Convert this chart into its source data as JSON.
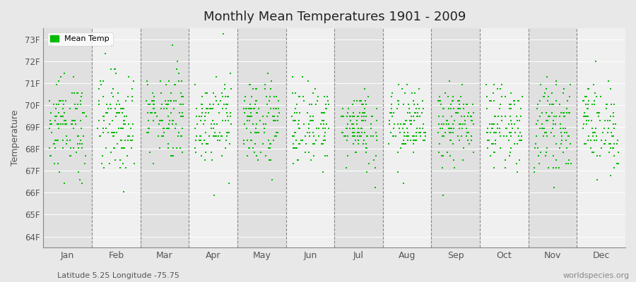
{
  "title": "Monthly Mean Temperatures 1901 - 2009",
  "ylabel": "Temperature",
  "subtitle": "Latitude 5.25 Longitude -75.75",
  "watermark": "worldspecies.org",
  "legend_label": "Mean Temp",
  "months": [
    "Jan",
    "Feb",
    "Mar",
    "Apr",
    "May",
    "Jun",
    "Jul",
    "Aug",
    "Sep",
    "Oct",
    "Nov",
    "Dec"
  ],
  "ylim": [
    63.5,
    73.5
  ],
  "yticks": [
    64,
    65,
    66,
    67,
    68,
    69,
    70,
    71,
    72,
    73
  ],
  "ytick_labels": [
    "64F",
    "65F",
    "66F",
    "67F",
    "68F",
    "69F",
    "70F",
    "71F",
    "72F",
    "73F"
  ],
  "dot_color": "#00bb00",
  "dot_size": 3,
  "bg_color": "#e8e8e8",
  "plot_bg_odd": "#f0f0f0",
  "plot_bg_even": "#e0e0e0",
  "grid_color": "#888888",
  "n_years": 109,
  "mean_temps": [
    69.08,
    69.26,
    69.62,
    69.44,
    69.26,
    69.08,
    69.08,
    69.08,
    69.08,
    69.08,
    69.08,
    69.08
  ],
  "std_temps": [
    1.1,
    1.2,
    1.0,
    1.0,
    1.0,
    0.9,
    0.85,
    0.85,
    0.85,
    0.85,
    0.95,
    1.0
  ],
  "quantize": 0.18,
  "seed": 12345
}
